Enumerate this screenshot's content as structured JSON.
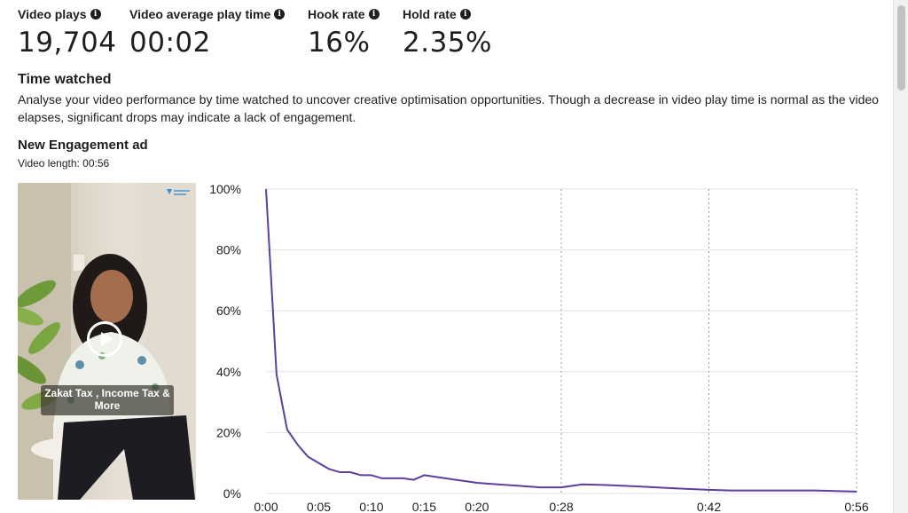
{
  "metrics": [
    {
      "label": "Video plays",
      "value": "19,704",
      "icon": "info-icon"
    },
    {
      "label": "Video average play time",
      "value": "00:02",
      "icon": "info-icon"
    },
    {
      "label": "Hook rate",
      "value": "16%",
      "icon": "info-icon"
    },
    {
      "label": "Hold rate",
      "value": "2.35%",
      "icon": "info-icon"
    }
  ],
  "section": {
    "title": "Time watched",
    "description": "Analyse your video performance by time watched to uncover creative optimisation opportunities. Though a decrease in video play time is normal as the video elapses, significant drops may indicate a lack of engagement."
  },
  "ad": {
    "name": "New Engagement ad",
    "video_length": "Video length: 00:56",
    "thumbnail_caption": "Zakat Tax , Income Tax & More",
    "play_icon": "play-icon"
  },
  "colors": {
    "line": "#5c3f9e",
    "grid": "#e3e3e3",
    "marker_line": "#9a9a9a"
  },
  "chart_data": {
    "type": "line",
    "title": "",
    "xlabel": "",
    "ylabel": "",
    "x_unit": "seconds",
    "xlim": [
      0,
      56
    ],
    "ylim": [
      0,
      100
    ],
    "y_ticks": [
      "0%",
      "20%",
      "40%",
      "60%",
      "80%",
      "100%"
    ],
    "y_tick_values": [
      0,
      20,
      40,
      60,
      80,
      100
    ],
    "x_tick_values": [
      0,
      5,
      10,
      15,
      20,
      28,
      42,
      56
    ],
    "x_tick_labels": [
      "0:00",
      "0:05",
      "0:10",
      "0:15",
      "0:20",
      "0:28",
      "0:42",
      "0:56"
    ],
    "vertical_markers": [
      28,
      42,
      56
    ],
    "grid": true,
    "series": [
      {
        "x": [
          0,
          1,
          2,
          3,
          4,
          5,
          6,
          7,
          8,
          9,
          10,
          11,
          12,
          13,
          14,
          15,
          16,
          17,
          18,
          19,
          20,
          22,
          24,
          26,
          28,
          30,
          32,
          34,
          36,
          38,
          40,
          42,
          44,
          46,
          48,
          50,
          52,
          54,
          56
        ],
        "y": [
          100,
          39,
          21,
          16,
          12,
          10,
          8,
          7,
          7,
          6,
          6,
          5,
          5,
          5,
          4.5,
          6,
          5.5,
          5,
          4.5,
          4,
          3.5,
          3,
          2.5,
          2,
          2,
          3,
          2.8,
          2.5,
          2.2,
          1.8,
          1.5,
          1.2,
          1.0,
          1.0,
          1.0,
          1.0,
          1.0,
          0.8,
          0.6
        ]
      }
    ]
  }
}
